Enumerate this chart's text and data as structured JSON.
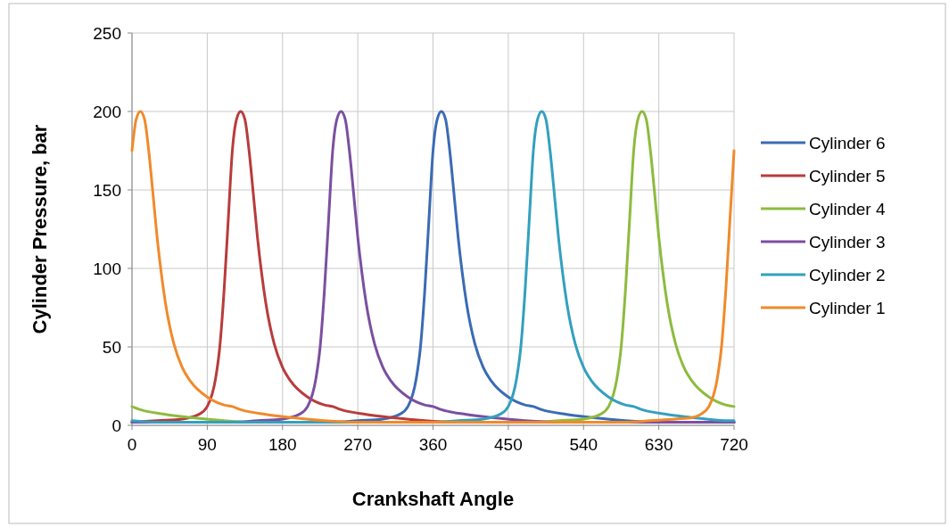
{
  "chart_data": {
    "type": "line",
    "xlabel": "Crankshaft Angle",
    "ylabel": "Cylinder Pressure, bar",
    "xlim": [
      0,
      720
    ],
    "xticks": [
      0,
      90,
      180,
      270,
      360,
      450,
      540,
      630,
      720
    ],
    "ylim": [
      0,
      250
    ],
    "yticks": [
      0,
      50,
      100,
      150,
      200,
      250
    ],
    "grid": true,
    "legend": "right",
    "marker": "none",
    "line_style": "solid",
    "series": [
      {
        "name": "Cylinder 6",
        "color": "#3a6bb5",
        "x": [
          0,
          240,
          270,
          300,
          320,
          330,
          340,
          345,
          350,
          355,
          360,
          365,
          370,
          375,
          380,
          385,
          390,
          395,
          400,
          410,
          420,
          430,
          450,
          470,
          480,
          490,
          520,
          550,
          590,
          630,
          720
        ],
        "values": [
          2,
          2,
          3,
          4,
          7,
          12,
          30,
          50,
          85,
          130,
          175,
          195,
          200,
          195,
          175,
          148,
          120,
          97,
          78,
          52,
          37,
          28,
          18,
          13,
          12,
          10,
          7,
          5,
          3,
          2,
          2
        ]
      },
      {
        "name": "Cylinder 5",
        "color": "#b83c3c",
        "x": [
          0,
          30,
          60,
          80,
          90,
          100,
          105,
          110,
          115,
          120,
          125,
          130,
          135,
          140,
          145,
          150,
          155,
          160,
          170,
          180,
          190,
          210,
          230,
          240,
          250,
          280,
          310,
          350,
          390,
          720
        ],
        "values": [
          2,
          3,
          4,
          7,
          12,
          30,
          50,
          85,
          130,
          175,
          195,
          200,
          195,
          175,
          148,
          120,
          97,
          78,
          52,
          37,
          28,
          18,
          13,
          12,
          10,
          7,
          5,
          3,
          2,
          2
        ]
      },
      {
        "name": "Cylinder 4",
        "color": "#8dbb3e",
        "x": [
          0,
          10,
          40,
          70,
          110,
          150,
          480,
          510,
          540,
          560,
          570,
          580,
          585,
          590,
          595,
          600,
          605,
          610,
          615,
          620,
          625,
          630,
          635,
          640,
          650,
          660,
          670,
          690,
          710,
          720
        ],
        "values": [
          12,
          10,
          7,
          5,
          3,
          2,
          2,
          3,
          4,
          7,
          12,
          30,
          50,
          85,
          130,
          175,
          195,
          200,
          195,
          175,
          148,
          120,
          97,
          78,
          52,
          37,
          28,
          18,
          13,
          12
        ]
      },
      {
        "name": "Cylinder 3",
        "color": "#7b4fa0",
        "x": [
          0,
          120,
          150,
          180,
          200,
          210,
          220,
          225,
          230,
          235,
          240,
          245,
          250,
          255,
          260,
          265,
          270,
          275,
          280,
          290,
          300,
          310,
          330,
          350,
          360,
          370,
          400,
          430,
          470,
          510,
          720
        ],
        "values": [
          2,
          2,
          3,
          4,
          7,
          12,
          30,
          50,
          85,
          130,
          175,
          195,
          200,
          195,
          175,
          148,
          120,
          97,
          78,
          52,
          37,
          28,
          18,
          13,
          12,
          10,
          7,
          5,
          3,
          2,
          2
        ]
      },
      {
        "name": "Cylinder 2",
        "color": "#33a0bf",
        "x": [
          0,
          30,
          360,
          390,
          420,
          440,
          450,
          460,
          465,
          470,
          475,
          480,
          485,
          490,
          495,
          500,
          505,
          510,
          515,
          520,
          530,
          540,
          550,
          570,
          590,
          600,
          610,
          640,
          670,
          710,
          720
        ],
        "values": [
          3,
          2,
          2,
          3,
          4,
          7,
          12,
          30,
          50,
          85,
          130,
          175,
          195,
          200,
          195,
          175,
          148,
          120,
          97,
          78,
          52,
          37,
          28,
          18,
          13,
          12,
          10,
          7,
          5,
          3,
          3
        ]
      },
      {
        "name": "Cylinder 1",
        "color": "#f08a2b",
        "x": [
          0,
          5,
          10,
          15,
          20,
          25,
          30,
          35,
          40,
          50,
          60,
          70,
          90,
          110,
          120,
          130,
          160,
          190,
          230,
          270,
          590,
          620,
          650,
          670,
          680,
          690,
          700,
          705,
          710,
          715,
          720
        ],
        "values": [
          175,
          195,
          200,
          195,
          175,
          148,
          120,
          97,
          78,
          52,
          37,
          28,
          18,
          13,
          12,
          10,
          7,
          5,
          3,
          2,
          2,
          3,
          4,
          5,
          7,
          12,
          30,
          50,
          85,
          130,
          175
        ]
      }
    ]
  }
}
